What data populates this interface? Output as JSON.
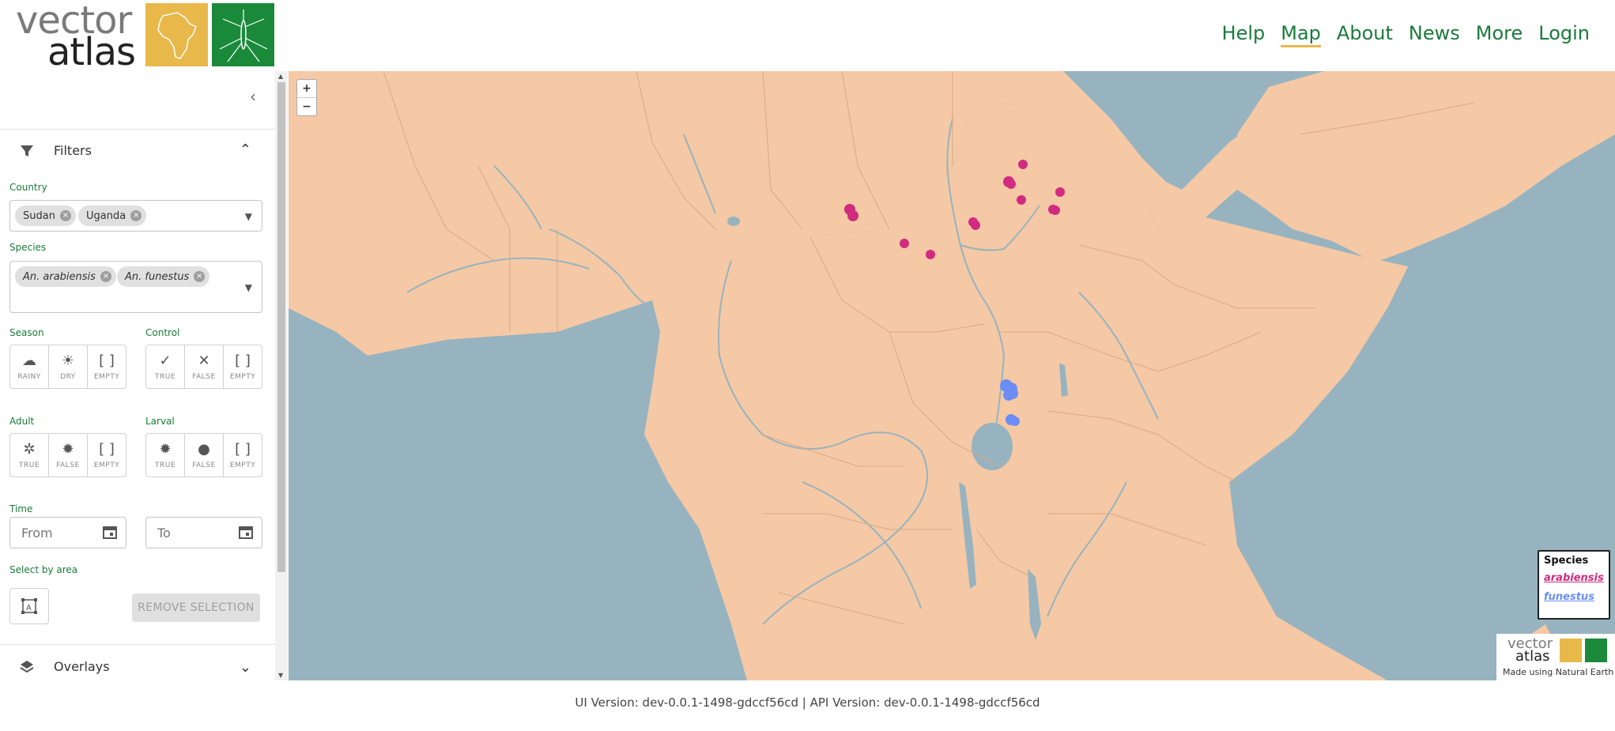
{
  "header": {
    "logo": {
      "word1": "vector",
      "word2": "atlas"
    },
    "nav": [
      {
        "label": "Help",
        "active": false
      },
      {
        "label": "Map",
        "active": true
      },
      {
        "label": "About",
        "active": false
      },
      {
        "label": "News",
        "active": false
      },
      {
        "label": "More",
        "active": false
      },
      {
        "label": "Login",
        "active": false
      }
    ]
  },
  "sidebar": {
    "collapse_icon": "chevron-left-icon",
    "filters": {
      "title": "Filters",
      "country": {
        "label": "Country",
        "selected": [
          "Sudan",
          "Uganda"
        ]
      },
      "species": {
        "label": "Species",
        "selected": [
          "An. arabiensis",
          "An. funestus"
        ]
      },
      "season": {
        "label": "Season",
        "options": [
          "RAINY",
          "DRY",
          "EMPTY"
        ]
      },
      "control": {
        "label": "Control",
        "options": [
          "TRUE",
          "FALSE",
          "EMPTY"
        ]
      },
      "adult": {
        "label": "Adult",
        "options": [
          "TRUE",
          "FALSE",
          "EMPTY"
        ]
      },
      "larval": {
        "label": "Larval",
        "options": [
          "TRUE",
          "FALSE",
          "EMPTY"
        ]
      },
      "time": {
        "label": "Time",
        "from_placeholder": "From",
        "to_placeholder": "To"
      },
      "area": {
        "label": "Select by area",
        "remove_label": "REMOVE SELECTION"
      }
    },
    "overlays": {
      "title": "Overlays"
    }
  },
  "map": {
    "zoom_in": "+",
    "zoom_out": "−",
    "legend": {
      "title": "Species",
      "items": [
        {
          "label": "arabiensis",
          "color": "#d12b7f"
        },
        {
          "label": "funestus",
          "color": "#6b8df5"
        }
      ]
    },
    "attribution": {
      "word1": "vector",
      "word2": "atlas",
      "credit": "Made using Natural Earth"
    }
  },
  "footer": {
    "version": "UI Version: dev-0.0.1-1498-gdccf56cd | API Version: dev-0.0.1-1498-gdccf56cd"
  },
  "colors": {
    "brand_green": "#1a7a3a",
    "brand_yellow": "#e9b84a",
    "land": "#f5c9a5",
    "water": "#97b3bf",
    "arabiensis": "#d12b7f",
    "funestus": "#6b8df5"
  }
}
